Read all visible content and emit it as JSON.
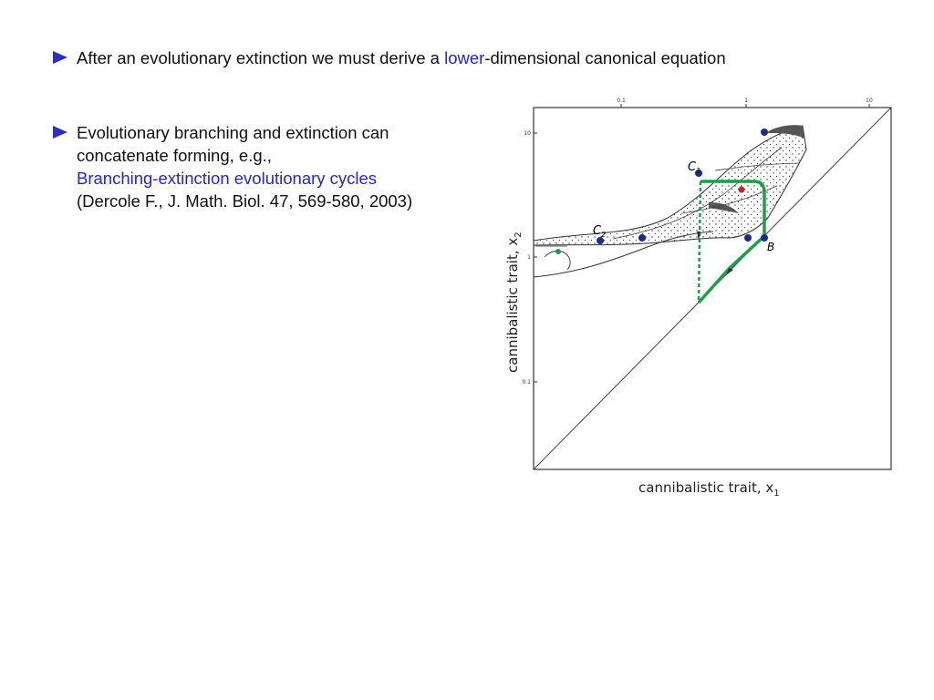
{
  "bullets": {
    "first": {
      "pre": "After an evolutionary extinction we must derive a ",
      "highlight": "lower",
      "post": "-dimensional canonical equation"
    },
    "second": {
      "line1": "Evolutionary branching and extinction can",
      "line2": "concatenate forming, e.g.,",
      "line3": "Branching-extinction evolutionary  cycles",
      "line4": "(Dercole F., J. Math. Biol. 47, 569-580, 2003)"
    }
  },
  "figure": {
    "xlabel": "cannibalistic trait, x",
    "xlabel_sub": "1",
    "ylabel": "cannibalistic trait, x",
    "ylabel_sub": "2",
    "top_ticks": [
      "0.1",
      "1",
      "10"
    ],
    "left_ticks": [
      "10",
      "1",
      "0.1"
    ],
    "point_labels": {
      "c1": "C",
      "c1_sub": "1",
      "c2": "C",
      "c2_sub": "2",
      "b": "B"
    }
  },
  "colors": {
    "bullet": "#2b2fc4",
    "highlight": "#2626c9",
    "cycle": "#1f9e4a",
    "point": "#1d2a8c",
    "red_point": "#c0282a"
  }
}
